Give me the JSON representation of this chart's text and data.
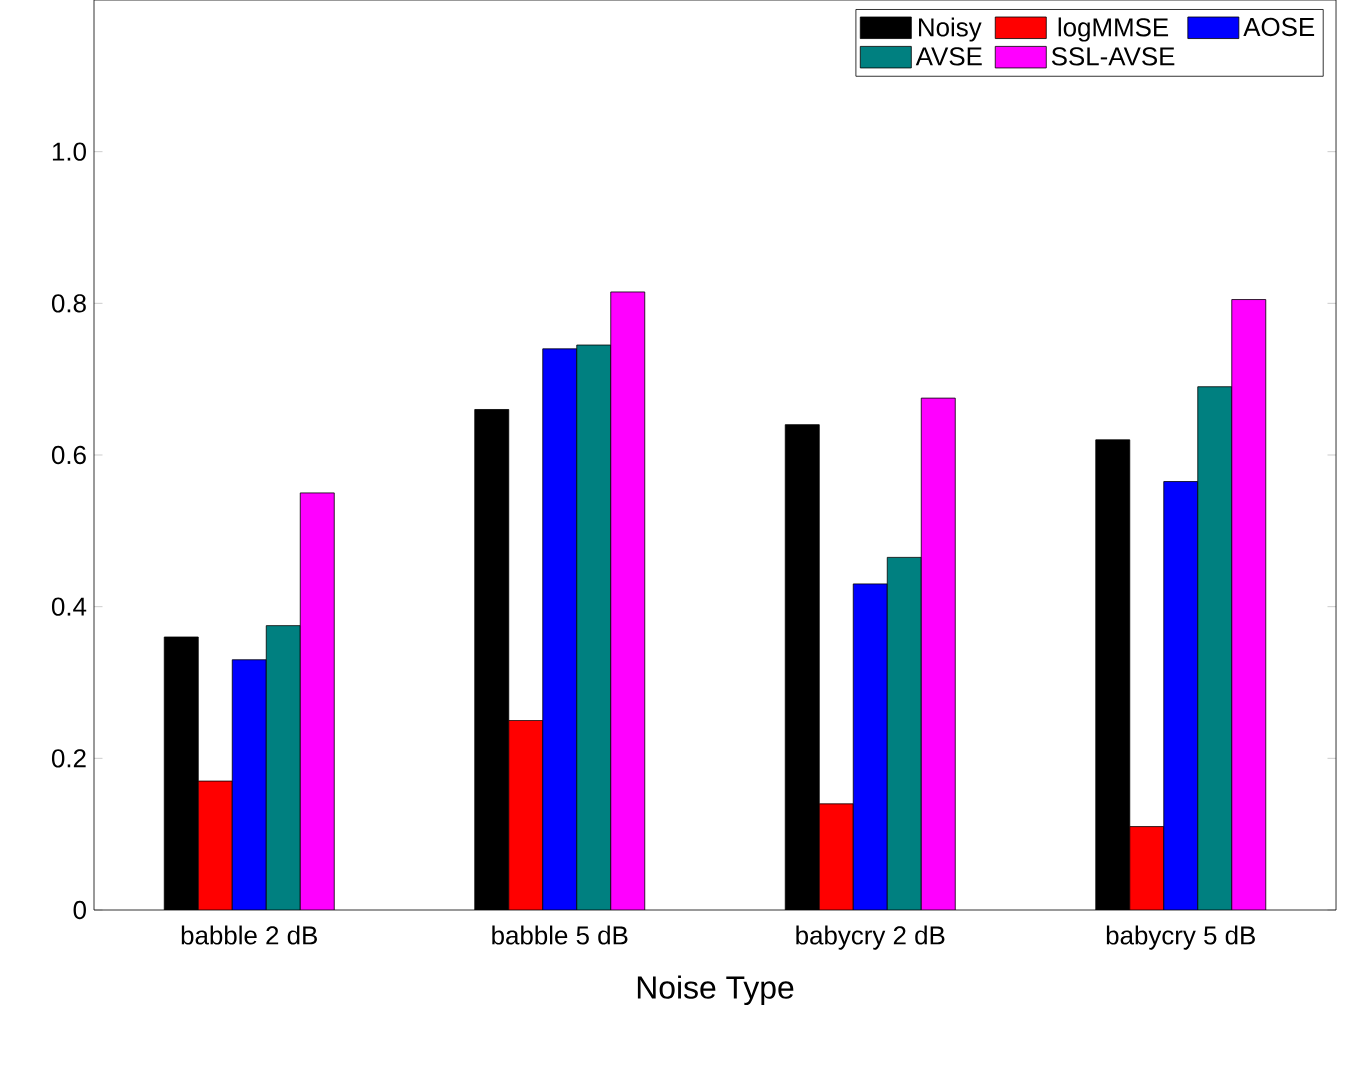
{
  "chart_data": {
    "type": "bar",
    "xlabel": "Noise Type",
    "categories": [
      "babble 2 dB",
      "babble 5 dB",
      "babycry 2 dB",
      "babycry 5 dB"
    ],
    "series": [
      {
        "name": "Noisy",
        "color": "#000000",
        "values": [
          0.36,
          0.66,
          0.64,
          0.62
        ]
      },
      {
        "name": "logMMSE",
        "color": "#ff0000",
        "values": [
          0.17,
          0.25,
          0.14,
          0.11
        ]
      },
      {
        "name": "AOSE",
        "color": "#0000ff",
        "values": [
          0.33,
          0.74,
          0.43,
          0.565
        ]
      },
      {
        "name": "AVSE",
        "color": "#008080",
        "values": [
          0.375,
          0.745,
          0.465,
          0.69
        ]
      },
      {
        "name": "SSL-AVSE",
        "color": "#ff00ff",
        "values": [
          0.55,
          0.815,
          0.675,
          0.805
        ]
      }
    ],
    "ylim": [
      0,
      1.2
    ],
    "yticks": [
      0,
      0.2,
      0.4,
      0.6,
      0.8,
      {
        "value": 1.0,
        "label": "1.0"
      }
    ],
    "grid": false,
    "legend": "top right"
  }
}
